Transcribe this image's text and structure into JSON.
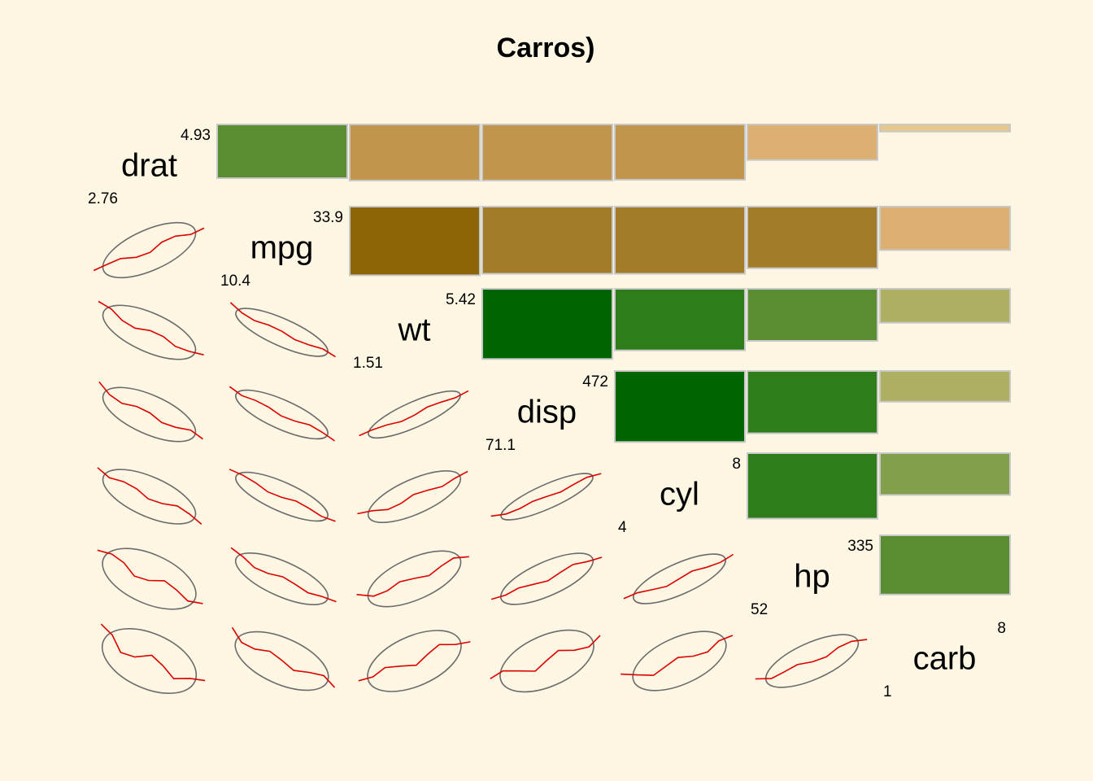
{
  "chart_data": {
    "type": "correlogram",
    "title": "Carros)",
    "variables": [
      {
        "name": "drat",
        "min": "2.76",
        "max": "4.93"
      },
      {
        "name": "mpg",
        "min": "10.4",
        "max": "33.9"
      },
      {
        "name": "wt",
        "min": "1.51",
        "max": "5.42"
      },
      {
        "name": "disp",
        "min": "71.1",
        "max": "472"
      },
      {
        "name": "cyl",
        "min": "4",
        "max": "8"
      },
      {
        "name": "hp",
        "min": "52",
        "max": "335"
      },
      {
        "name": "carb",
        "min": "1",
        "max": "8"
      }
    ],
    "upper_panels": "bars (height = |correlation|, green = positive, brown = negative)",
    "lower_panels": "data ellipse with loess smoother",
    "correlations": [
      [
        1.0,
        0.68,
        -0.71,
        -0.71,
        -0.7,
        -0.45,
        -0.09
      ],
      [
        0.68,
        1.0,
        -0.87,
        -0.85,
        -0.85,
        -0.78,
        -0.55
      ],
      [
        -0.71,
        -0.87,
        1.0,
        0.89,
        0.78,
        0.66,
        0.43
      ],
      [
        -0.71,
        -0.85,
        0.89,
        1.0,
        0.9,
        0.79,
        0.39
      ],
      [
        -0.7,
        -0.85,
        0.78,
        0.9,
        1.0,
        0.83,
        0.53
      ],
      [
        -0.45,
        -0.78,
        0.66,
        0.79,
        0.83,
        1.0,
        0.75
      ],
      [
        -0.09,
        -0.55,
        0.43,
        0.39,
        0.53,
        0.75,
        1.0
      ]
    ],
    "colors": {
      "background": "#fdf6e3",
      "positive_strong": "#006400",
      "positive_medium": "#2e7d1a",
      "positive_light": "#5a8c32",
      "positive_pale": "#82a04c",
      "positive_faint": "#adb060",
      "negative_strong": "#8b6508",
      "negative_medium": "#a37c2a",
      "negative_light": "#c0964c",
      "negative_pale": "#dcb070",
      "negative_faint": "#e6c88a",
      "bar_border": "#c8c8c8",
      "ellipse": "#6b6b6b",
      "smoother": "#dd0000"
    }
  }
}
